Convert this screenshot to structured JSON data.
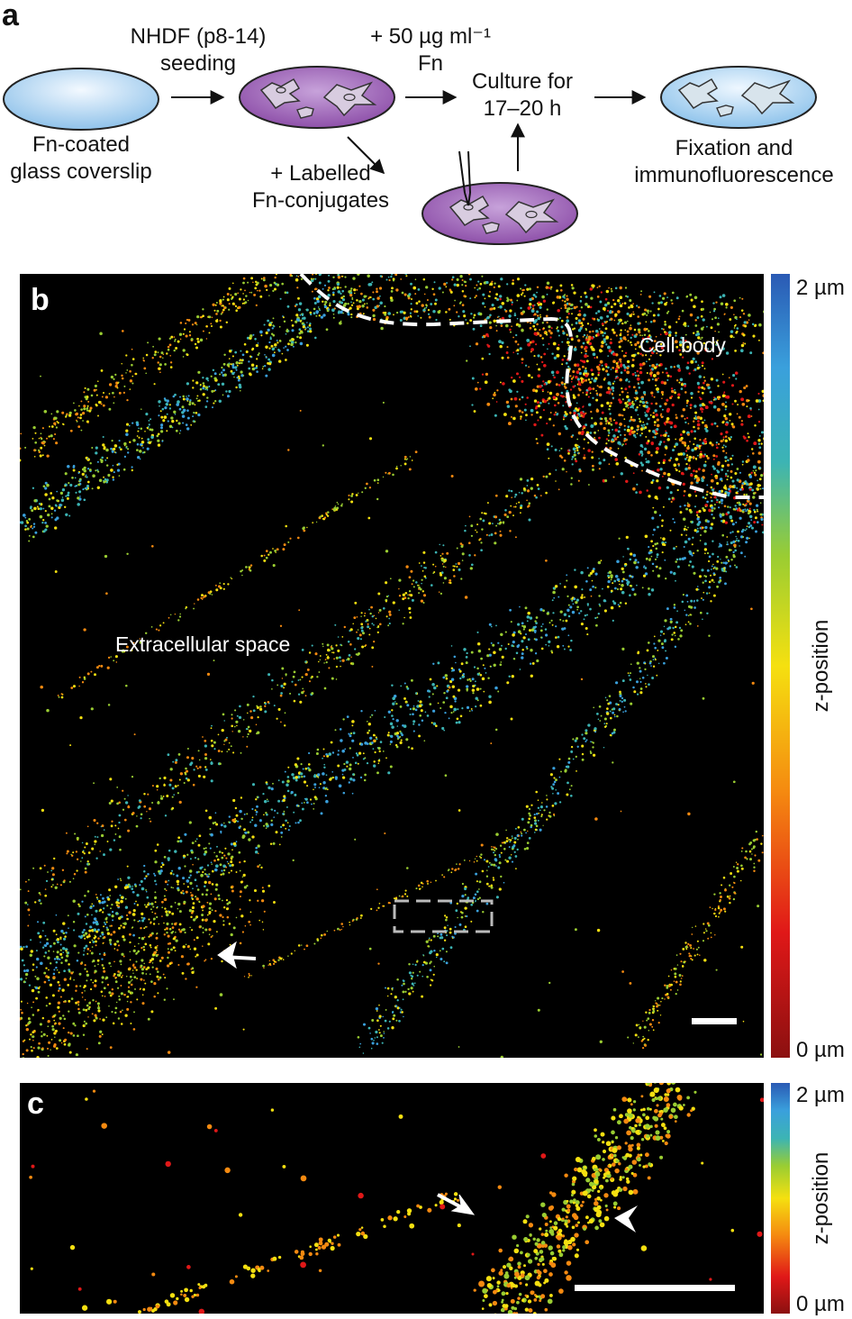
{
  "panel_a": {
    "letter": "a",
    "coverslip_label_1": "Fn-coated",
    "coverslip_label_2": "glass coverslip",
    "seeding_label_1": "NHDF (p8-14)",
    "seeding_label_2": "seeding",
    "fn_label_1": "+ 50 µg ml⁻¹",
    "fn_label_2": "Fn",
    "culture_label_1": "Culture for",
    "culture_label_2": "17–20 h",
    "fixation_label_1": "Fixation and",
    "fixation_label_2": "immunofluorescence",
    "conjugate_label_1": "+ Labelled",
    "conjugate_label_2": "Fn-conjugates"
  },
  "panel_b": {
    "letter": "b",
    "cell_body_label": "Cell body",
    "extracellular_label": "Extracellular space",
    "colorbar_top": "2 µm",
    "colorbar_bottom": "0 µm",
    "colorbar_title": "z-position"
  },
  "panel_c": {
    "letter": "c",
    "colorbar_top": "2 µm",
    "colorbar_bottom": "0 µm",
    "colorbar_title": "z-position"
  },
  "colors": {
    "coverslip_fill": "#b6d7f0",
    "dish_fill": "#9a5ab0",
    "micrograph_bg": "#000000",
    "outline_dashes": "#ffffff",
    "colormap": [
      "#8b1010",
      "#e01818",
      "#f58a10",
      "#f5e010",
      "#9acd32",
      "#3cb4b4",
      "#3aa0dc",
      "#2a5ab4"
    ]
  }
}
